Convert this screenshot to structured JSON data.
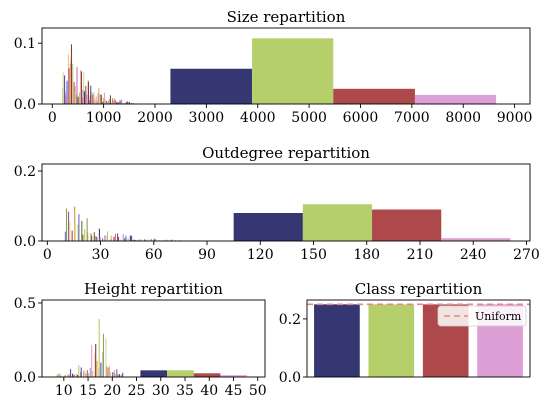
{
  "colors": {
    "navy": "#353772",
    "lime": "#b5cf6b",
    "red": "#ad494a",
    "pink": "#de9ed6",
    "uniform_line": "#e8858a",
    "legend_bg": "#ffffff",
    "legend_border": "#cccccc"
  },
  "noise_palette": [
    "#393b79",
    "#5254a3",
    "#6b6ecf",
    "#9c9ede",
    "#637939",
    "#8ca252",
    "#b5cf6b",
    "#cedb9c",
    "#8c6d31",
    "#bd9e39",
    "#e7ba52",
    "#e7cb94",
    "#843c39",
    "#ad494a",
    "#d6616b",
    "#e7969c",
    "#7b4173",
    "#a55194",
    "#ce6dbd",
    "#de9ed6"
  ],
  "chart_data": [
    {
      "id": "size",
      "type": "bar",
      "title": "Size repartition",
      "xlim": [
        -200,
        9300
      ],
      "ylim": [
        0,
        0.125
      ],
      "xticks": [
        0,
        1000,
        2000,
        3000,
        4000,
        5000,
        6000,
        7000,
        8000,
        9000
      ],
      "xtick_labels": [
        "0",
        "1000",
        "2000",
        "3000",
        "4000",
        "5000",
        "6000",
        "7000",
        "8000",
        "9000"
      ],
      "yticks": [
        0.0,
        0.1
      ],
      "ytick_labels": [
        "0.0",
        "0.1"
      ],
      "summary_bars": [
        {
          "x0": 2300,
          "x1": 3890,
          "value": 0.058,
          "color": "navy"
        },
        {
          "x0": 3890,
          "x1": 5470,
          "value": 0.108,
          "color": "lime"
        },
        {
          "x0": 5470,
          "x1": 7060,
          "value": 0.025,
          "color": "red"
        },
        {
          "x0": 7060,
          "x1": 8640,
          "value": 0.015,
          "color": "pink"
        }
      ],
      "detail": {
        "x_min": 200,
        "x_max": 1600,
        "n": 90,
        "peak": 0.12,
        "peak_x": 380,
        "decay": 350,
        "bar_width": 10
      }
    },
    {
      "id": "outdegree",
      "type": "bar",
      "title": "Outdegree repartition",
      "xlim": [
        -3,
        272
      ],
      "ylim": [
        0,
        0.22
      ],
      "xticks": [
        0,
        30,
        60,
        90,
        120,
        150,
        180,
        210,
        240,
        270
      ],
      "xtick_labels": [
        "0",
        "30",
        "60",
        "90",
        "120",
        "150",
        "180",
        "210",
        "240",
        "270"
      ],
      "yticks": [
        0.0,
        0.2
      ],
      "ytick_labels": [
        "0.0",
        "0.2"
      ],
      "summary_bars": [
        {
          "x0": 105,
          "x1": 144,
          "value": 0.08,
          "color": "navy"
        },
        {
          "x0": 144,
          "x1": 183,
          "value": 0.105,
          "color": "lime"
        },
        {
          "x0": 183,
          "x1": 222,
          "value": 0.09,
          "color": "red"
        },
        {
          "x0": 222,
          "x1": 261,
          "value": 0.008,
          "color": "pink"
        }
      ],
      "detail": {
        "x_min": 10,
        "x_max": 95,
        "n": 85,
        "peak": 0.19,
        "peak_x": 10,
        "decay": 16,
        "bar_width": 0.55
      }
    },
    {
      "id": "height",
      "type": "bar",
      "title": "Height repartition",
      "xlim": [
        5.5,
        51.5
      ],
      "ylim": [
        0,
        0.52
      ],
      "xticks": [
        10,
        15,
        20,
        25,
        30,
        35,
        40,
        45,
        50
      ],
      "xtick_labels": [
        "10",
        "15",
        "20",
        "25",
        "30",
        "35",
        "40",
        "45",
        "50"
      ],
      "yticks": [
        0.0,
        0.5
      ],
      "ytick_labels": [
        "0.0",
        "0.5"
      ],
      "summary_bars": [
        {
          "x0": 25.8,
          "x1": 31.3,
          "value": 0.045,
          "color": "navy"
        },
        {
          "x0": 31.3,
          "x1": 36.8,
          "value": 0.045,
          "color": "lime"
        },
        {
          "x0": 36.8,
          "x1": 42.3,
          "value": 0.025,
          "color": "red"
        },
        {
          "x0": 42.3,
          "x1": 47.8,
          "value": 0.012,
          "color": "pink"
        }
      ],
      "detail": {
        "x_min": 8.5,
        "x_max": 22,
        "n": 48,
        "peak": 0.47,
        "peak_x": 17.5,
        "decay": 3,
        "bar_width": 0.16
      }
    },
    {
      "id": "class",
      "type": "bar",
      "title": "Class repartition",
      "xlim": [
        -0.55,
        3.55
      ],
      "ylim": [
        0,
        0.265
      ],
      "yticks": [
        0.0,
        0.2
      ],
      "ytick_labels": [
        "0.0",
        "0.2"
      ],
      "bars": [
        {
          "x": 0,
          "value": 0.25,
          "color": "navy"
        },
        {
          "x": 1,
          "value": 0.25,
          "color": "lime"
        },
        {
          "x": 2,
          "value": 0.25,
          "color": "red"
        },
        {
          "x": 3,
          "value": 0.25,
          "color": "pink"
        }
      ],
      "bar_width": 0.84,
      "reference_line": {
        "value": 0.25,
        "label": "Uniform",
        "style": "dashed",
        "color": "uniform_line"
      },
      "legend": "top-right"
    }
  ]
}
